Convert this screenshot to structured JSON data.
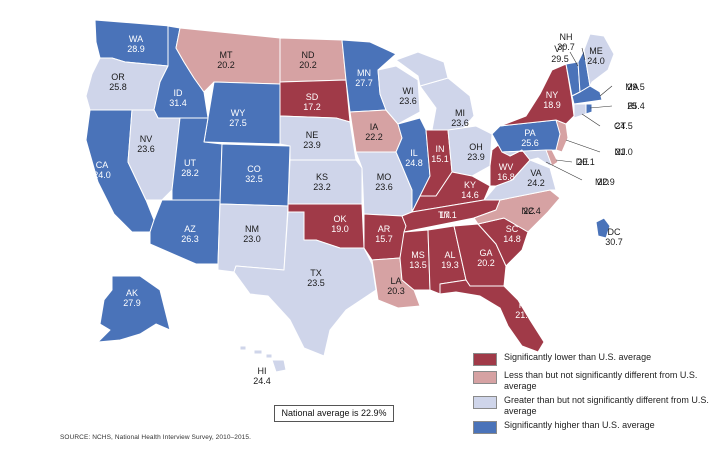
{
  "colors": {
    "sig_lower": "#a03a48",
    "less_not_sig": "#d6a2a3",
    "greater_not_sig": "#cfd5ea",
    "sig_higher": "#4a73b9",
    "border": "#ffffff"
  },
  "legend": [
    {
      "category": "sig_lower",
      "label": "Significantly lower than U.S. average"
    },
    {
      "category": "less_not_sig",
      "label": "Less than but not significantly different from U.S. average"
    },
    {
      "category": "greater_not_sig",
      "label": "Greater than but not significantly different from U.S. average"
    },
    {
      "category": "sig_higher",
      "label": "Significantly higher than U.S. average"
    }
  ],
  "national_average": "National average is 22.9%",
  "source": "SOURCE: NCHS, National Health Interview Survey, 2010–2015.",
  "states": [
    {
      "abbr": "WA",
      "value": "28.9",
      "category": "sig_higher"
    },
    {
      "abbr": "OR",
      "value": "25.8",
      "category": "greater_not_sig"
    },
    {
      "abbr": "CA",
      "value": "24.0",
      "category": "sig_higher"
    },
    {
      "abbr": "ID",
      "value": "31.4",
      "category": "sig_higher"
    },
    {
      "abbr": "NV",
      "value": "23.6",
      "category": "greater_not_sig"
    },
    {
      "abbr": "MT",
      "value": "20.2",
      "category": "less_not_sig"
    },
    {
      "abbr": "WY",
      "value": "27.5",
      "category": "sig_higher"
    },
    {
      "abbr": "UT",
      "value": "28.2",
      "category": "sig_higher"
    },
    {
      "abbr": "AZ",
      "value": "26.3",
      "category": "sig_higher"
    },
    {
      "abbr": "CO",
      "value": "32.5",
      "category": "sig_higher"
    },
    {
      "abbr": "NM",
      "value": "23.0",
      "category": "greater_not_sig"
    },
    {
      "abbr": "ND",
      "value": "20.2",
      "category": "less_not_sig"
    },
    {
      "abbr": "SD",
      "value": "17.2",
      "category": "sig_lower"
    },
    {
      "abbr": "NE",
      "value": "23.9",
      "category": "greater_not_sig"
    },
    {
      "abbr": "KS",
      "value": "23.2",
      "category": "greater_not_sig"
    },
    {
      "abbr": "OK",
      "value": "19.0",
      "category": "sig_lower"
    },
    {
      "abbr": "TX",
      "value": "23.5",
      "category": "greater_not_sig"
    },
    {
      "abbr": "MN",
      "value": "27.7",
      "category": "sig_higher"
    },
    {
      "abbr": "IA",
      "value": "22.2",
      "category": "less_not_sig"
    },
    {
      "abbr": "MO",
      "value": "23.6",
      "category": "greater_not_sig"
    },
    {
      "abbr": "AR",
      "value": "15.7",
      "category": "sig_lower"
    },
    {
      "abbr": "LA",
      "value": "20.3",
      "category": "less_not_sig"
    },
    {
      "abbr": "WI",
      "value": "23.6",
      "category": "greater_not_sig"
    },
    {
      "abbr": "IL",
      "value": "24.8",
      "category": "sig_higher"
    },
    {
      "abbr": "MI",
      "value": "23.6",
      "category": "greater_not_sig"
    },
    {
      "abbr": "IN",
      "value": "15.1",
      "category": "sig_lower"
    },
    {
      "abbr": "OH",
      "value": "23.9",
      "category": "greater_not_sig"
    },
    {
      "abbr": "KY",
      "value": "14.6",
      "category": "sig_lower"
    },
    {
      "abbr": "TN",
      "value": "17.1",
      "category": "sig_lower"
    },
    {
      "abbr": "MS",
      "value": "13.5",
      "category": "sig_lower"
    },
    {
      "abbr": "AL",
      "value": "19.3",
      "category": "sig_lower"
    },
    {
      "abbr": "GA",
      "value": "20.2",
      "category": "sig_lower"
    },
    {
      "abbr": "FL",
      "value": "21.1",
      "category": "sig_lower"
    },
    {
      "abbr": "SC",
      "value": "14.8",
      "category": "sig_lower"
    },
    {
      "abbr": "NC",
      "value": "22.4",
      "category": "less_not_sig"
    },
    {
      "abbr": "VA",
      "value": "24.2",
      "category": "greater_not_sig"
    },
    {
      "abbr": "WV",
      "value": "16.8",
      "category": "sig_lower"
    },
    {
      "abbr": "PA",
      "value": "25.6",
      "category": "sig_higher"
    },
    {
      "abbr": "NY",
      "value": "18.9",
      "category": "sig_lower"
    },
    {
      "abbr": "VT",
      "value": "29.5",
      "category": "sig_higher"
    },
    {
      "abbr": "NH",
      "value": "30.7",
      "category": "sig_higher"
    },
    {
      "abbr": "ME",
      "value": "24.0",
      "category": "greater_not_sig"
    },
    {
      "abbr": "MA",
      "value": "29.5",
      "category": "sig_higher"
    },
    {
      "abbr": "RI",
      "value": "25.4",
      "category": "sig_higher"
    },
    {
      "abbr": "CT",
      "value": "24.5",
      "category": "greater_not_sig"
    },
    {
      "abbr": "NJ",
      "value": "21.0",
      "category": "less_not_sig"
    },
    {
      "abbr": "DE",
      "value": "20.1",
      "category": "less_not_sig"
    },
    {
      "abbr": "MD",
      "value": "22.9",
      "category": "greater_not_sig"
    },
    {
      "abbr": "DC",
      "value": "30.7",
      "category": "sig_higher"
    },
    {
      "abbr": "AK",
      "value": "27.9",
      "category": "sig_higher"
    },
    {
      "abbr": "HI",
      "value": "24.4",
      "category": "greater_not_sig"
    }
  ]
}
